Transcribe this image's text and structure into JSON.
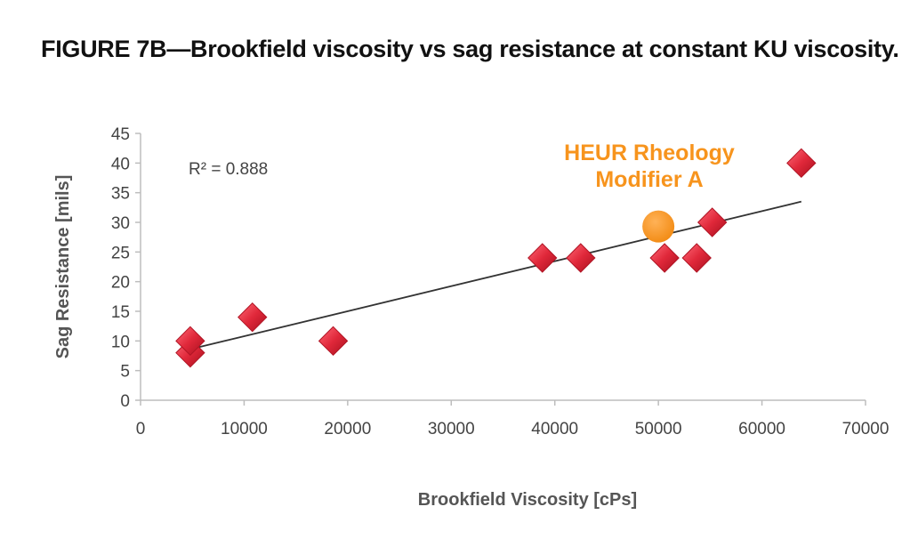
{
  "title": "FIGURE 7B—Brookfield viscosity vs sag resistance at constant KU viscosity.",
  "chart_data": {
    "type": "scatter",
    "xlabel": "Brookfield Viscosity [cPs]",
    "ylabel": "Sag Resistance [mils]",
    "xlim": [
      0,
      70000
    ],
    "ylim": [
      0,
      45
    ],
    "x_ticks": [
      0,
      10000,
      20000,
      30000,
      40000,
      50000,
      60000,
      70000
    ],
    "y_ticks": [
      0,
      5,
      10,
      15,
      20,
      25,
      30,
      35,
      40,
      45
    ],
    "grid": false,
    "series": [
      {
        "marker": "diamond",
        "color": "#e0283a",
        "points": [
          {
            "x": 4800,
            "y": 8
          },
          {
            "x": 4800,
            "y": 10
          },
          {
            "x": 10800,
            "y": 14
          },
          {
            "x": 18600,
            "y": 10
          },
          {
            "x": 38800,
            "y": 24
          },
          {
            "x": 42500,
            "y": 24
          },
          {
            "x": 50600,
            "y": 24
          },
          {
            "x": 53700,
            "y": 24
          },
          {
            "x": 55200,
            "y": 30
          },
          {
            "x": 63800,
            "y": 40
          }
        ]
      },
      {
        "name": "HEUR Rheology Modifier A",
        "marker": "circle",
        "color": "#f7941d",
        "points": [
          {
            "x": 50000,
            "y": 29.3
          }
        ]
      }
    ],
    "trendline": {
      "from": {
        "x": 4800,
        "y": 8.6
      },
      "to": {
        "x": 63800,
        "y": 33.5
      },
      "color": "#333333"
    },
    "annotations": [
      {
        "text": "R² = 0.888"
      },
      {
        "lines": [
          "HEUR Rheology",
          "Modifier A"
        ],
        "color": "#f7941d"
      }
    ]
  }
}
